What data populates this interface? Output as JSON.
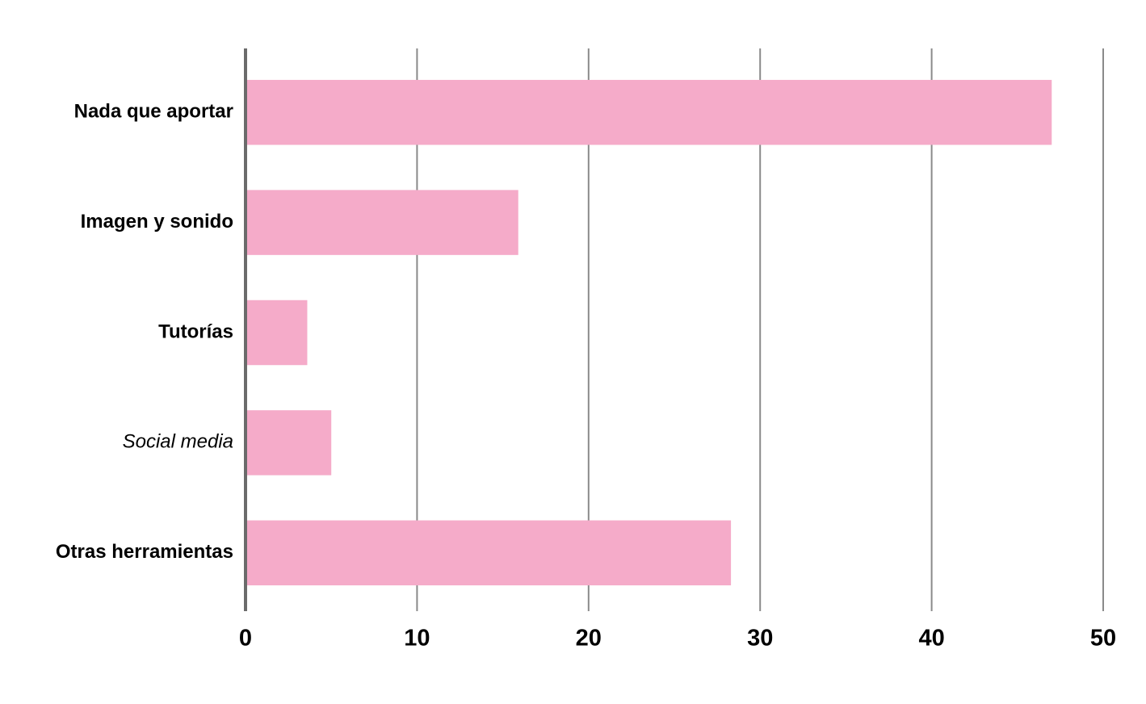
{
  "chart_data": {
    "type": "bar",
    "orientation": "horizontal",
    "categories": [
      "Nada que aportar",
      "Imagen y sonido",
      "Tutorías",
      "Social media",
      "Otras herramientas"
    ],
    "values": [
      47.0,
      15.9,
      3.6,
      5.0,
      28.3
    ],
    "color": "#f5abc9",
    "xlim": [
      0,
      50
    ],
    "xticks": [
      0,
      10,
      20,
      30,
      40,
      50
    ],
    "grid": true
  }
}
